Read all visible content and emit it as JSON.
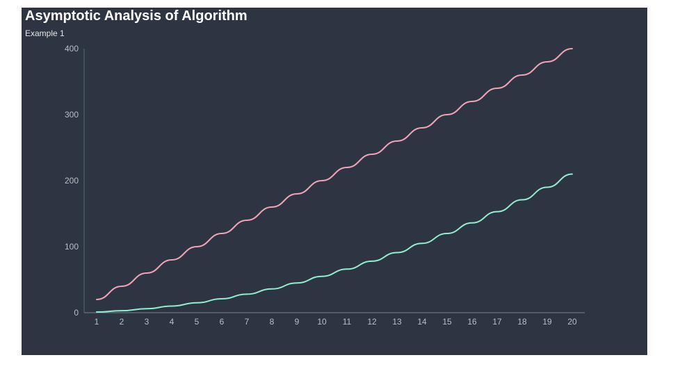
{
  "chart_data": {
    "type": "line",
    "title": "Asymptotic Analysis of Algorithm",
    "subtitle": "Example 1",
    "xlabel": "",
    "ylabel": "",
    "categories": [
      "1",
      "2",
      "3",
      "4",
      "5",
      "6",
      "7",
      "8",
      "9",
      "10",
      "11",
      "12",
      "13",
      "14",
      "15",
      "16",
      "17",
      "18",
      "19",
      "20"
    ],
    "ylim": [
      0,
      400
    ],
    "yticks": [
      "0",
      "100",
      "200",
      "300",
      "400"
    ],
    "series": [
      {
        "values": [
          20,
          40,
          60,
          80,
          100,
          120,
          140,
          160,
          180,
          200,
          220,
          240,
          260,
          280,
          300,
          320,
          340,
          360,
          380,
          400
        ],
        "color": "#f4a3b8"
      },
      {
        "values": [
          1,
          3,
          6,
          10,
          15,
          21,
          28,
          36,
          45,
          55,
          66,
          78,
          91,
          105,
          120,
          136,
          153,
          171,
          190,
          210
        ],
        "color": "#8ef0cf"
      }
    ],
    "grid": false,
    "legend": "none",
    "background": "#2c3541"
  }
}
